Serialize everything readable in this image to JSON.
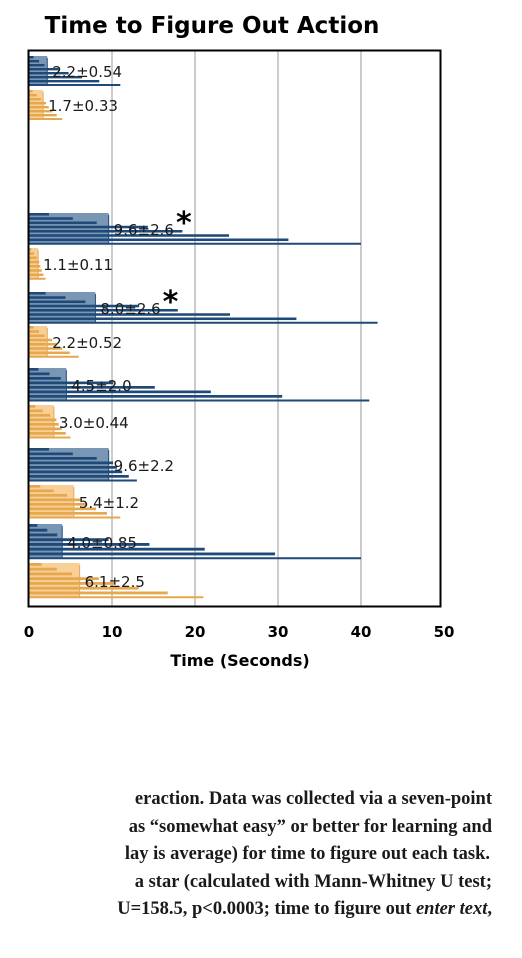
{
  "colors": {
    "blue_dark": "#1f4a78",
    "blue_light": "#7996b4",
    "orange_dark": "#e6a84e",
    "orange_light": "#f8cf96",
    "grid": "#9a9a9a",
    "frame": "#000000"
  },
  "chart_data": {
    "type": "bar",
    "title": "Time to Figure Out Action",
    "xlabel": "Time (Seconds)",
    "ylabel": "",
    "xlim": [
      0,
      50
    ],
    "xticks": [
      "0",
      "10",
      "20",
      "30",
      "40",
      "50"
    ],
    "grid": "vertical at 10, 20, 30, 40",
    "groups": [
      {
        "bars": [
          {
            "color": "blue",
            "mean": 2.2,
            "max": 11,
            "label": "2.2±0.54"
          },
          {
            "color": "orange",
            "mean": 1.7,
            "max": 4,
            "label": "1.7±0.33"
          }
        ]
      },
      {
        "bars": [
          {
            "color": "blue",
            "mean": 9.6,
            "max": 40,
            "label": "9.6±2.6",
            "significant": true
          },
          {
            "color": "orange",
            "mean": 1.1,
            "max": 2,
            "label": "1.1±0.11"
          }
        ]
      },
      {
        "bars": [
          {
            "color": "blue",
            "mean": 8.0,
            "max": 42,
            "label": "8.0±2.6",
            "significant": true
          },
          {
            "color": "orange",
            "mean": 2.2,
            "max": 6,
            "label": "2.2±0.52"
          }
        ]
      },
      {
        "bars": [
          {
            "color": "blue",
            "mean": 4.5,
            "max": 41,
            "label": "4.5±2.0"
          },
          {
            "color": "orange",
            "mean": 3.0,
            "max": 5,
            "label": "3.0±0.44"
          }
        ]
      },
      {
        "bars": [
          {
            "color": "blue",
            "mean": 9.6,
            "max": 13,
            "label": "9.6±2.2"
          },
          {
            "color": "orange",
            "mean": 5.4,
            "max": 11,
            "label": "5.4±1.2"
          }
        ]
      },
      {
        "bars": [
          {
            "color": "blue",
            "mean": 4.0,
            "max": 40,
            "label": "4.0±0.85"
          },
          {
            "color": "orange",
            "mean": 6.1,
            "max": 21,
            "label": "6.1±2.5"
          }
        ]
      }
    ],
    "star_symbol": "*"
  },
  "caption": {
    "line1": "eraction. Data was collected via a seven-point",
    "line2": "as “somewhat easy” or better for learning and",
    "line3": "lay is average) for time to figure out each task.",
    "line4": "a star (calculated with Mann-Whitney U test;",
    "line5_a": "U=158.5, p<0.0003; time to figure out ",
    "line5_italic": "enter text",
    "line5_b": ","
  }
}
